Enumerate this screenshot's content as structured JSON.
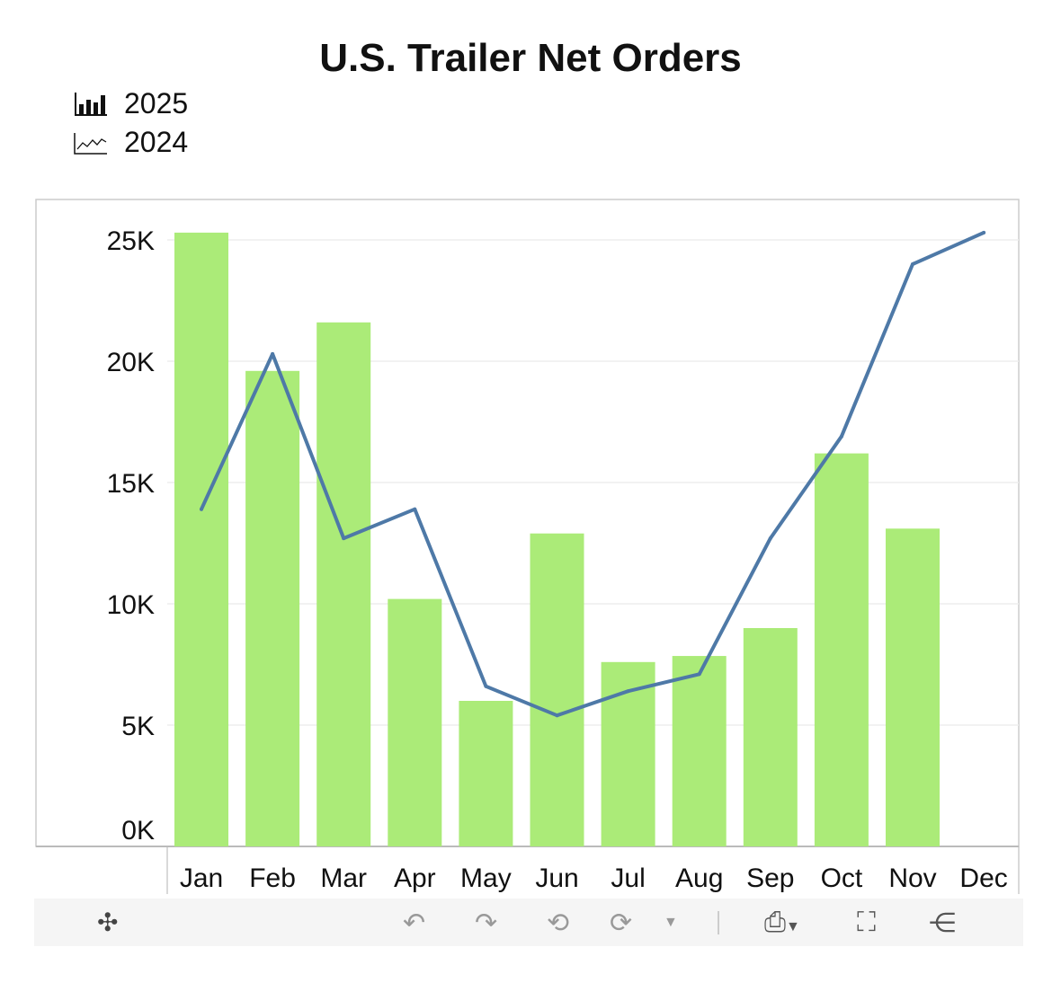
{
  "chart_data": {
    "type": "bar",
    "title": "U.S. Trailer Net Orders",
    "categories": [
      "Jan",
      "Feb",
      "Mar",
      "Apr",
      "May",
      "Jun",
      "Jul",
      "Aug",
      "Sep",
      "Oct",
      "Nov",
      "Dec"
    ],
    "series": [
      {
        "name": "2025",
        "type": "bar",
        "color": "#abeb78",
        "values": [
          25300,
          19600,
          21600,
          10200,
          6000,
          12900,
          7600,
          7850,
          9000,
          16200,
          13100,
          null
        ]
      },
      {
        "name": "2024",
        "type": "line",
        "color": "#4e79a7",
        "values": [
          13900,
          20300,
          12700,
          13900,
          6600,
          5400,
          6400,
          7100,
          12700,
          16900,
          24000,
          25300
        ]
      }
    ],
    "yticks": [
      "0K",
      "5K",
      "10K",
      "15K",
      "20K",
      "25K"
    ],
    "ylim": [
      0,
      26500
    ],
    "grid": true,
    "legend": "top-left"
  },
  "toolbar": {
    "icons": [
      "tableau-logo-icon",
      "undo-icon",
      "redo-icon",
      "revert-icon",
      "refresh-icon",
      "pause-dropdown-icon",
      "download-icon",
      "fullscreen-icon",
      "share-icon"
    ]
  }
}
